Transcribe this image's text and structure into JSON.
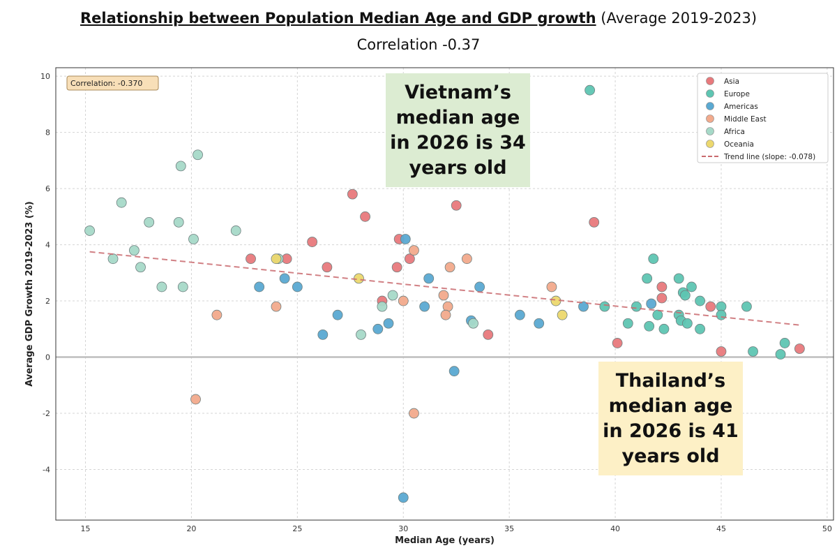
{
  "title_bold": "Relationship between Population Median Age and GDP growth",
  "title_rest": " (Average 2019-2023)",
  "subtitle": "Correlation -0.37",
  "annotations": {
    "correlation_box": "Correlation: -0.370",
    "vietnam": "Vietnam’s median age in 2026 is 34 years old",
    "thailand": "Thailand’s median age in 2026 is 41 years old",
    "vietnam_bg": "#dcecd2",
    "thailand_bg": "#fdf0c6",
    "correlation_bg": "#f8dfb8"
  },
  "chart_data": {
    "type": "scatter",
    "xlabel": "Median Age (years)",
    "ylabel": "Average GDP Growth 2019-2023 (%)",
    "xlim": [
      13.6,
      50.3
    ],
    "ylim": [
      -5.8,
      10.3
    ],
    "xticks": [
      15,
      20,
      25,
      30,
      35,
      40,
      45,
      50
    ],
    "yticks": [
      -4,
      -2,
      0,
      2,
      4,
      6,
      8,
      10
    ],
    "grid": true,
    "legend_position": "top-right",
    "series": [
      {
        "name": "Asia",
        "color": "#e8797c",
        "points": [
          [
            22.8,
            3.5
          ],
          [
            24.5,
            3.5
          ],
          [
            25.7,
            4.1
          ],
          [
            26.4,
            3.2
          ],
          [
            27.6,
            5.8
          ],
          [
            28.2,
            5.0
          ],
          [
            29.7,
            3.2
          ],
          [
            29.8,
            4.2
          ],
          [
            30.3,
            3.5
          ],
          [
            29.0,
            2.0
          ],
          [
            32.5,
            5.4
          ],
          [
            34.0,
            0.8
          ],
          [
            39.0,
            4.8
          ],
          [
            42.2,
            2.5
          ],
          [
            42.2,
            2.1
          ],
          [
            44.5,
            1.8
          ],
          [
            40.1,
            0.5
          ],
          [
            45.0,
            0.2
          ],
          [
            48.7,
            0.3
          ]
        ]
      },
      {
        "name": "Europe",
        "color": "#5ec5b2",
        "points": [
          [
            38.8,
            9.5
          ],
          [
            41.8,
            3.5
          ],
          [
            41.5,
            2.8
          ],
          [
            43.0,
            2.8
          ],
          [
            43.6,
            2.5
          ],
          [
            43.2,
            2.3
          ],
          [
            43.3,
            2.2
          ],
          [
            44.0,
            2.0
          ],
          [
            41.0,
            1.8
          ],
          [
            42.0,
            1.5
          ],
          [
            43.0,
            1.5
          ],
          [
            43.1,
            1.3
          ],
          [
            43.4,
            1.2
          ],
          [
            40.6,
            1.2
          ],
          [
            41.6,
            1.1
          ],
          [
            42.3,
            1.0
          ],
          [
            44.0,
            1.0
          ],
          [
            45.0,
            1.8
          ],
          [
            45.0,
            1.5
          ],
          [
            46.2,
            1.8
          ],
          [
            46.5,
            0.2
          ],
          [
            48.0,
            0.5
          ],
          [
            47.8,
            0.1
          ],
          [
            39.5,
            1.8
          ]
        ]
      },
      {
        "name": "Americas",
        "color": "#5aa9d2",
        "points": [
          [
            23.2,
            2.5
          ],
          [
            24.4,
            2.8
          ],
          [
            25.0,
            2.5
          ],
          [
            26.2,
            0.8
          ],
          [
            26.9,
            1.5
          ],
          [
            28.8,
            1.0
          ],
          [
            29.3,
            1.2
          ],
          [
            30.1,
            4.2
          ],
          [
            31.0,
            1.8
          ],
          [
            31.2,
            2.8
          ],
          [
            33.2,
            1.3
          ],
          [
            33.6,
            2.5
          ],
          [
            32.4,
            -0.5
          ],
          [
            30.0,
            -5.0
          ],
          [
            35.5,
            1.5
          ],
          [
            36.4,
            1.2
          ],
          [
            38.5,
            1.8
          ],
          [
            41.7,
            1.9
          ]
        ]
      },
      {
        "name": "Middle East",
        "color": "#f2aa8c",
        "points": [
          [
            21.2,
            1.5
          ],
          [
            24.0,
            1.8
          ],
          [
            20.2,
            -1.5
          ],
          [
            30.5,
            3.8
          ],
          [
            30.5,
            -2.0
          ],
          [
            30.0,
            2.0
          ],
          [
            31.9,
            2.2
          ],
          [
            32.1,
            1.8
          ],
          [
            32.0,
            1.5
          ],
          [
            32.2,
            3.2
          ],
          [
            33.0,
            3.5
          ],
          [
            37.0,
            2.5
          ]
        ]
      },
      {
        "name": "Africa",
        "color": "#a6d9c8",
        "points": [
          [
            15.2,
            4.5
          ],
          [
            16.3,
            3.5
          ],
          [
            16.7,
            5.5
          ],
          [
            17.3,
            3.8
          ],
          [
            17.6,
            3.2
          ],
          [
            18.0,
            4.8
          ],
          [
            18.6,
            2.5
          ],
          [
            19.4,
            4.8
          ],
          [
            19.5,
            6.8
          ],
          [
            19.6,
            2.5
          ],
          [
            20.1,
            4.2
          ],
          [
            20.3,
            7.2
          ],
          [
            22.1,
            4.5
          ],
          [
            24.1,
            3.5
          ],
          [
            28.0,
            0.8
          ],
          [
            29.5,
            2.2
          ],
          [
            29.0,
            1.8
          ],
          [
            33.3,
            1.2
          ]
        ]
      },
      {
        "name": "Oceania",
        "color": "#ecd86e",
        "points": [
          [
            24.0,
            3.5
          ],
          [
            27.9,
            2.8
          ],
          [
            37.2,
            2.0
          ],
          [
            37.5,
            1.5
          ]
        ]
      }
    ],
    "trend_line": {
      "name": "Trend line (slope: -0.078)",
      "color": "#c96a6e",
      "slope": -0.078,
      "x": [
        15.2,
        48.7
      ],
      "y": [
        3.75,
        1.14
      ]
    }
  }
}
